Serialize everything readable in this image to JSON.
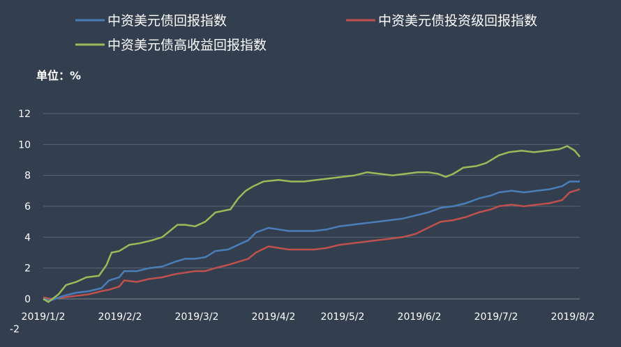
{
  "chart_data": {
    "type": "line",
    "unit_label": "单位：%",
    "ylim": [
      -2,
      12
    ],
    "yticks": [
      12,
      10,
      8,
      6,
      4,
      2,
      0,
      -2
    ],
    "xlabels": [
      "2019/1/2",
      "2019/2/2",
      "2019/3/2",
      "2019/4/2",
      "2019/5/2",
      "2019/6/2",
      "2019/7/2",
      "2019/8/2"
    ],
    "grid": true,
    "legend_position": "top",
    "series": [
      {
        "name": "中资美元债回报指数",
        "color": "#4a7ebb",
        "points": [
          [
            "2019-01-02",
            0.0
          ],
          [
            "2019-01-05",
            -0.1
          ],
          [
            "2019-01-10",
            0.2
          ],
          [
            "2019-01-15",
            0.4
          ],
          [
            "2019-01-20",
            0.5
          ],
          [
            "2019-01-25",
            0.7
          ],
          [
            "2019-01-28",
            1.2
          ],
          [
            "2019-02-01",
            1.4
          ],
          [
            "2019-02-03",
            1.8
          ],
          [
            "2019-02-08",
            1.8
          ],
          [
            "2019-02-13",
            2.0
          ],
          [
            "2019-02-18",
            2.1
          ],
          [
            "2019-02-23",
            2.4
          ],
          [
            "2019-02-27",
            2.6
          ],
          [
            "2019-03-03",
            2.6
          ],
          [
            "2019-03-07",
            2.7
          ],
          [
            "2019-03-11",
            3.1
          ],
          [
            "2019-03-16",
            3.2
          ],
          [
            "2019-03-20",
            3.5
          ],
          [
            "2019-03-24",
            3.8
          ],
          [
            "2019-03-27",
            4.3
          ],
          [
            "2019-04-01",
            4.6
          ],
          [
            "2019-04-05",
            4.5
          ],
          [
            "2019-04-09",
            4.4
          ],
          [
            "2019-04-14",
            4.4
          ],
          [
            "2019-04-19",
            4.4
          ],
          [
            "2019-04-24",
            4.5
          ],
          [
            "2019-04-29",
            4.7
          ],
          [
            "2019-05-04",
            4.8
          ],
          [
            "2019-05-09",
            4.9
          ],
          [
            "2019-05-14",
            5.0
          ],
          [
            "2019-05-19",
            5.1
          ],
          [
            "2019-05-24",
            5.2
          ],
          [
            "2019-05-29",
            5.4
          ],
          [
            "2019-06-03",
            5.6
          ],
          [
            "2019-06-08",
            5.9
          ],
          [
            "2019-06-13",
            6.0
          ],
          [
            "2019-06-18",
            6.2
          ],
          [
            "2019-06-23",
            6.5
          ],
          [
            "2019-06-28",
            6.7
          ],
          [
            "2019-07-01",
            6.9
          ],
          [
            "2019-07-06",
            7.0
          ],
          [
            "2019-07-11",
            6.9
          ],
          [
            "2019-07-16",
            7.0
          ],
          [
            "2019-07-21",
            7.1
          ],
          [
            "2019-07-26",
            7.3
          ],
          [
            "2019-07-29",
            7.6
          ],
          [
            "2019-08-02",
            7.6
          ]
        ]
      },
      {
        "name": "中资美元债投资级回报指数",
        "color": "#c0504d",
        "points": [
          [
            "2019-01-02",
            0.1
          ],
          [
            "2019-01-05",
            0.0
          ],
          [
            "2019-01-10",
            0.1
          ],
          [
            "2019-01-15",
            0.2
          ],
          [
            "2019-01-20",
            0.3
          ],
          [
            "2019-01-25",
            0.5
          ],
          [
            "2019-01-28",
            0.6
          ],
          [
            "2019-02-01",
            0.8
          ],
          [
            "2019-02-03",
            1.2
          ],
          [
            "2019-02-08",
            1.1
          ],
          [
            "2019-02-13",
            1.3
          ],
          [
            "2019-02-18",
            1.4
          ],
          [
            "2019-02-23",
            1.6
          ],
          [
            "2019-02-27",
            1.7
          ],
          [
            "2019-03-03",
            1.8
          ],
          [
            "2019-03-07",
            1.8
          ],
          [
            "2019-03-11",
            2.0
          ],
          [
            "2019-03-16",
            2.2
          ],
          [
            "2019-03-20",
            2.4
          ],
          [
            "2019-03-24",
            2.6
          ],
          [
            "2019-03-27",
            3.0
          ],
          [
            "2019-04-01",
            3.4
          ],
          [
            "2019-04-05",
            3.3
          ],
          [
            "2019-04-09",
            3.2
          ],
          [
            "2019-04-14",
            3.2
          ],
          [
            "2019-04-19",
            3.2
          ],
          [
            "2019-04-24",
            3.3
          ],
          [
            "2019-04-29",
            3.5
          ],
          [
            "2019-05-04",
            3.6
          ],
          [
            "2019-05-09",
            3.7
          ],
          [
            "2019-05-14",
            3.8
          ],
          [
            "2019-05-19",
            3.9
          ],
          [
            "2019-05-24",
            4.0
          ],
          [
            "2019-05-29",
            4.2
          ],
          [
            "2019-06-03",
            4.6
          ],
          [
            "2019-06-08",
            5.0
          ],
          [
            "2019-06-13",
            5.1
          ],
          [
            "2019-06-18",
            5.3
          ],
          [
            "2019-06-23",
            5.6
          ],
          [
            "2019-06-28",
            5.8
          ],
          [
            "2019-07-01",
            6.0
          ],
          [
            "2019-07-06",
            6.1
          ],
          [
            "2019-07-11",
            6.0
          ],
          [
            "2019-07-16",
            6.1
          ],
          [
            "2019-07-21",
            6.2
          ],
          [
            "2019-07-26",
            6.4
          ],
          [
            "2019-07-29",
            6.9
          ],
          [
            "2019-08-02",
            7.1
          ]
        ]
      },
      {
        "name": "中资美元债高收益回报指数",
        "color": "#9bbb59",
        "points": [
          [
            "2019-01-02",
            0.0
          ],
          [
            "2019-01-04",
            -0.2
          ],
          [
            "2019-01-08",
            0.3
          ],
          [
            "2019-01-11",
            0.9
          ],
          [
            "2019-01-15",
            1.1
          ],
          [
            "2019-01-19",
            1.4
          ],
          [
            "2019-01-24",
            1.5
          ],
          [
            "2019-01-27",
            2.2
          ],
          [
            "2019-01-29",
            3.0
          ],
          [
            "2019-02-01",
            3.1
          ],
          [
            "2019-02-05",
            3.5
          ],
          [
            "2019-02-09",
            3.6
          ],
          [
            "2019-02-14",
            3.8
          ],
          [
            "2019-02-18",
            4.0
          ],
          [
            "2019-02-21",
            4.4
          ],
          [
            "2019-02-24",
            4.8
          ],
          [
            "2019-02-27",
            4.8
          ],
          [
            "2019-03-03",
            4.7
          ],
          [
            "2019-03-07",
            5.0
          ],
          [
            "2019-03-11",
            5.6
          ],
          [
            "2019-03-14",
            5.7
          ],
          [
            "2019-03-17",
            5.8
          ],
          [
            "2019-03-20",
            6.5
          ],
          [
            "2019-03-23",
            7.0
          ],
          [
            "2019-03-26",
            7.3
          ],
          [
            "2019-03-30",
            7.6
          ],
          [
            "2019-04-05",
            7.7
          ],
          [
            "2019-04-10",
            7.6
          ],
          [
            "2019-04-15",
            7.6
          ],
          [
            "2019-04-20",
            7.7
          ],
          [
            "2019-04-25",
            7.8
          ],
          [
            "2019-04-30",
            7.9
          ],
          [
            "2019-05-05",
            8.0
          ],
          [
            "2019-05-10",
            8.2
          ],
          [
            "2019-05-15",
            8.1
          ],
          [
            "2019-05-20",
            8.0
          ],
          [
            "2019-05-25",
            8.1
          ],
          [
            "2019-05-30",
            8.2
          ],
          [
            "2019-06-03",
            8.2
          ],
          [
            "2019-06-07",
            8.1
          ],
          [
            "2019-06-10",
            7.9
          ],
          [
            "2019-06-13",
            8.1
          ],
          [
            "2019-06-17",
            8.5
          ],
          [
            "2019-06-22",
            8.6
          ],
          [
            "2019-06-26",
            8.8
          ],
          [
            "2019-07-01",
            9.3
          ],
          [
            "2019-07-05",
            9.5
          ],
          [
            "2019-07-10",
            9.6
          ],
          [
            "2019-07-15",
            9.5
          ],
          [
            "2019-07-20",
            9.6
          ],
          [
            "2019-07-25",
            9.7
          ],
          [
            "2019-07-28",
            9.9
          ],
          [
            "2019-07-31",
            9.6
          ],
          [
            "2019-08-02",
            9.2
          ]
        ]
      }
    ]
  }
}
